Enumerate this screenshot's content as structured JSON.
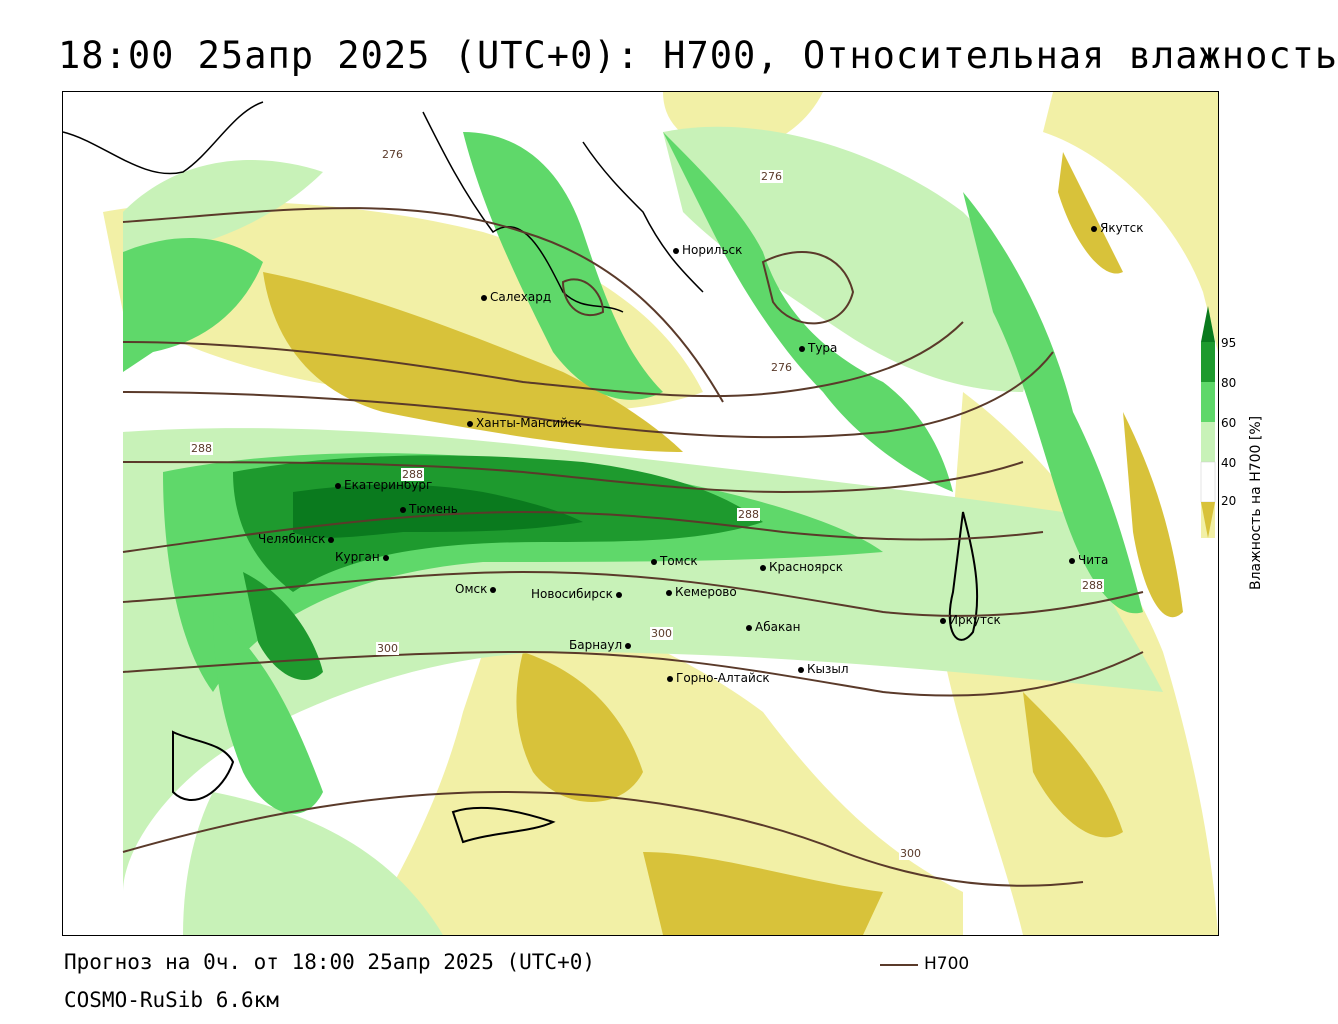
{
  "title": "18:00 25апр 2025 (UTC+0): H700, Относительная влажность",
  "footer": {
    "forecast": "Прогноз на 0ч. от 18:00 25апр 2025 (UTC+0)",
    "model": "COSMO-RuSib 6.6км",
    "legend_label": "H700",
    "legend_color": "#5a3a2a"
  },
  "colorbar": {
    "title": "Влажность на H700 [%]",
    "ticks": [
      "95",
      "80",
      "60",
      "40",
      "20"
    ],
    "colors": {
      "very_dry": "#d8c23a",
      "dry": "#f2f0a6",
      "neutral": "#ffffff",
      "moist": "#c8f2b8",
      "wet": "#5fd86a",
      "very_wet": "#1e9a2e",
      "saturated": "#0a7a1e"
    }
  },
  "cities": [
    {
      "name": "Салехард"
    },
    {
      "name": "Норильск"
    },
    {
      "name": "Якутск"
    },
    {
      "name": "Тура"
    },
    {
      "name": "Ханты-Мансийск"
    },
    {
      "name": "Екатеринбург"
    },
    {
      "name": "Тюмень"
    },
    {
      "name": "Челябинск"
    },
    {
      "name": "Курган"
    },
    {
      "name": "Омск"
    },
    {
      "name": "Новосибирск"
    },
    {
      "name": "Томск"
    },
    {
      "name": "Кемерово"
    },
    {
      "name": "Красноярск"
    },
    {
      "name": "Барнаул"
    },
    {
      "name": "Абакан"
    },
    {
      "name": "Иркутск"
    },
    {
      "name": "Чита"
    },
    {
      "name": "Кызыл"
    },
    {
      "name": "Горно-Алтайск"
    }
  ],
  "contour_labels": [
    "276",
    "276",
    "276",
    "288",
    "288",
    "288",
    "288",
    "300",
    "300",
    "300"
  ]
}
